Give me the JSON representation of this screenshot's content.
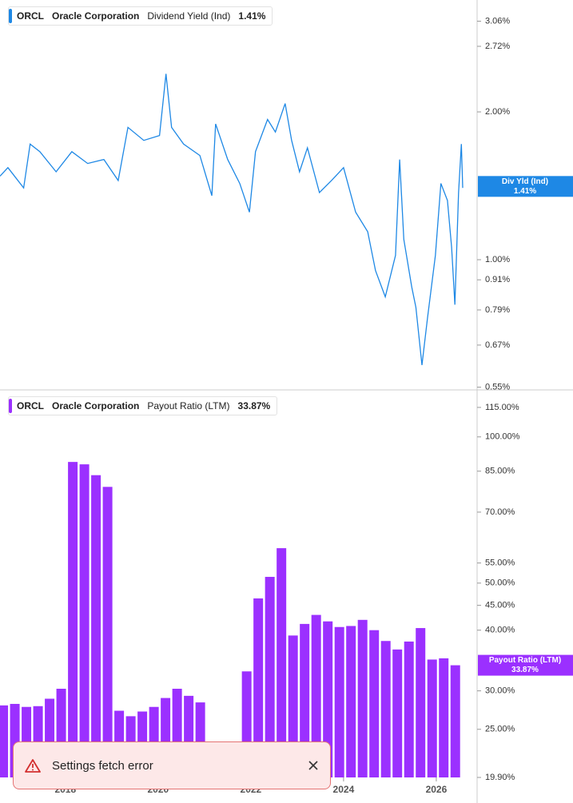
{
  "chart_data": [
    {
      "type": "line",
      "ticker": "ORCL",
      "company": "Oracle Corporation",
      "log_scale": true,
      "flag_label": "Div Yld (Ind)",
      "last_value": 1.41,
      "last_value_label": "1.41%",
      "xlim": [
        2016.59,
        2026.88
      ],
      "x": [
        2016.59,
        2016.76,
        2017.1,
        2017.24,
        2017.45,
        2017.8,
        2018.14,
        2018.48,
        2018.83,
        2019.14,
        2019.35,
        2019.69,
        2020.03,
        2020.17,
        2020.29,
        2020.55,
        2020.9,
        2021.16,
        2021.24,
        2021.5,
        2021.76,
        2021.97,
        2022.1,
        2022.36,
        2022.53,
        2022.74,
        2022.88,
        2023.05,
        2023.22,
        2023.48,
        2023.74,
        2024.0,
        2024.26,
        2024.52,
        2024.69,
        2024.9,
        2025.12,
        2025.21,
        2025.3,
        2025.47,
        2025.56,
        2025.69,
        2025.81,
        2025.98,
        2026.1,
        2026.24,
        2026.33,
        2026.4,
        2026.48,
        2026.54,
        2026.57
      ],
      "series": [
        {
          "name": "Dividend Yield (Ind)",
          "color": "#1e88e5",
          "values": [
            1.48,
            1.54,
            1.4,
            1.72,
            1.66,
            1.51,
            1.66,
            1.57,
            1.6,
            1.45,
            1.86,
            1.75,
            1.79,
            2.39,
            1.86,
            1.72,
            1.63,
            1.35,
            1.89,
            1.6,
            1.43,
            1.25,
            1.66,
            1.93,
            1.82,
            2.08,
            1.75,
            1.51,
            1.69,
            1.37,
            1.45,
            1.54,
            1.25,
            1.14,
            0.95,
            0.84,
            1.02,
            1.6,
            1.1,
            0.88,
            0.8,
            0.61,
            0.76,
            1.02,
            1.43,
            1.32,
            1.06,
            0.81,
            1.37,
            1.72,
            1.4
          ]
        }
      ],
      "ylim": [
        0.545,
        3.38
      ],
      "yticks": [
        {
          "value": 3.06,
          "label": "3.06%"
        },
        {
          "value": 2.72,
          "label": "2.72%"
        },
        {
          "value": 2.0,
          "label": "2.00%"
        },
        {
          "value": 1.0,
          "label": "1.00%"
        },
        {
          "value": 0.91,
          "label": "0.91%"
        },
        {
          "value": 0.79,
          "label": "0.79%"
        },
        {
          "value": 0.67,
          "label": "0.67%"
        },
        {
          "value": 0.55,
          "label": "0.55%"
        }
      ]
    },
    {
      "type": "bar",
      "ticker": "ORCL",
      "company": "Oracle Corporation",
      "log_scale": true,
      "flag_label": "Payout Ratio (LTM)",
      "last_value": 33.87,
      "last_value_label": "33.87%",
      "xlim": [
        2016.59,
        2026.88
      ],
      "xticks": [
        2018,
        2020,
        2022,
        2024,
        2026
      ],
      "x": [
        2016.66,
        2016.91,
        2017.16,
        2017.41,
        2017.66,
        2017.91,
        2018.16,
        2018.41,
        2018.66,
        2018.91,
        2019.16,
        2019.41,
        2019.66,
        2019.91,
        2020.16,
        2020.41,
        2020.66,
        2020.91,
        2021.16,
        2021.41,
        2021.66,
        2021.91,
        2022.16,
        2022.41,
        2022.66,
        2022.91,
        2023.16,
        2023.41,
        2023.66,
        2023.91,
        2024.16,
        2024.41,
        2024.66,
        2024.91,
        2025.16,
        2025.41,
        2025.66,
        2025.91,
        2026.16,
        2026.41
      ],
      "series": [
        {
          "name": "Payout Ratio (LTM)",
          "color": "#9b30ff",
          "values": [
            28.0,
            28.2,
            27.8,
            27.9,
            28.9,
            30.3,
            88.8,
            87.8,
            83.4,
            78.9,
            27.3,
            26.6,
            27.2,
            27.8,
            29.0,
            30.3,
            29.3,
            28.4,
            null,
            null,
            null,
            32.9,
            46.5,
            51.5,
            59.0,
            39.0,
            41.2,
            43.0,
            41.7,
            40.6,
            40.8,
            42.0,
            40.0,
            38.0,
            36.5,
            37.9,
            40.4,
            34.8,
            35.0,
            33.87
          ]
        }
      ],
      "ylim": [
        19.9,
        124
      ],
      "yticks": [
        {
          "value": 115,
          "label": "115.00%"
        },
        {
          "value": 100,
          "label": "100.00%"
        },
        {
          "value": 85,
          "label": "85.00%"
        },
        {
          "value": 70,
          "label": "70.00%"
        },
        {
          "value": 55,
          "label": "55.00%"
        },
        {
          "value": 50,
          "label": "50.00%"
        },
        {
          "value": 45,
          "label": "45.00%"
        },
        {
          "value": 40,
          "label": "40.00%"
        },
        {
          "value": 30,
          "label": "30.00%"
        },
        {
          "value": 25,
          "label": "25.00%"
        },
        {
          "value": 19.9,
          "label": "19.90%"
        }
      ]
    }
  ],
  "toast": {
    "message": "Settings fetch error"
  }
}
